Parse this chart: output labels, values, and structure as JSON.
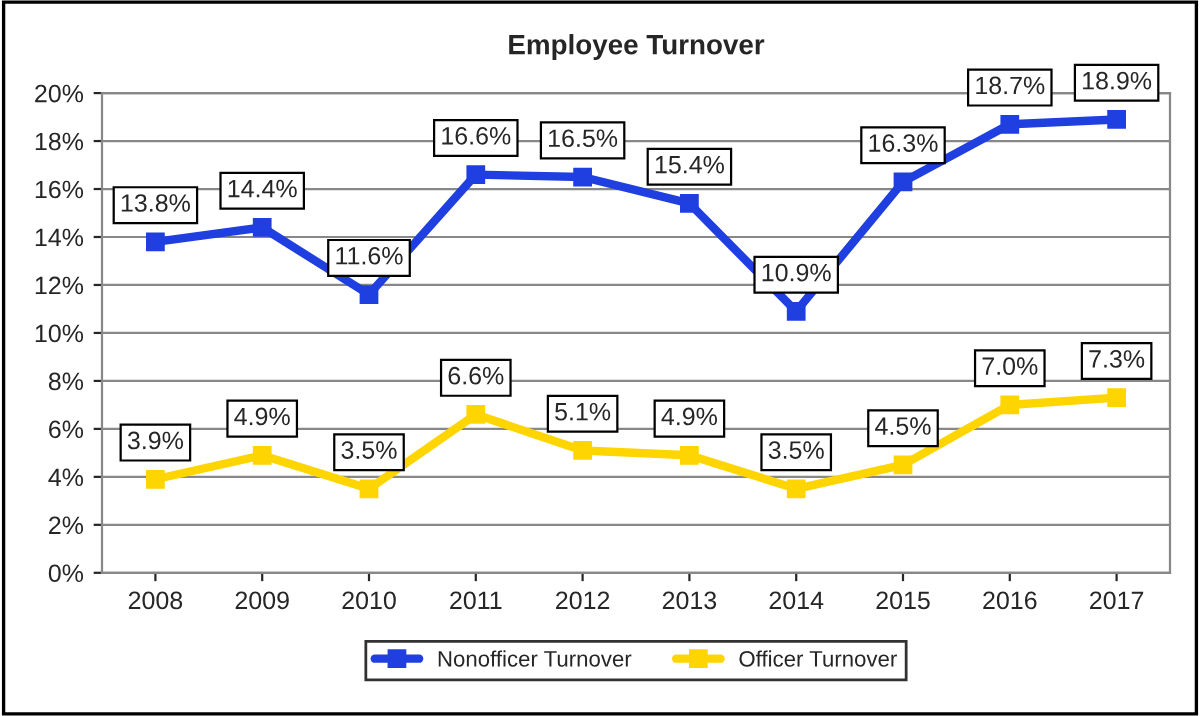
{
  "chart_data": {
    "type": "line",
    "title": "Employee Turnover",
    "categories": [
      "2008",
      "2009",
      "2010",
      "2011",
      "2012",
      "2013",
      "2014",
      "2015",
      "2016",
      "2017"
    ],
    "series": [
      {
        "name": "Nonofficer Turnover",
        "color": "#1f3fe0",
        "values": [
          13.8,
          14.4,
          11.6,
          16.6,
          16.5,
          15.4,
          10.9,
          16.3,
          18.7,
          18.9
        ],
        "value_labels": [
          "13.8%",
          "14.4%",
          "11.6%",
          "16.6%",
          "16.5%",
          "15.4%",
          "10.9%",
          "16.3%",
          "18.7%",
          "18.9%"
        ]
      },
      {
        "name": "Officer Turnover",
        "color": "#ffd500",
        "values": [
          3.9,
          4.9,
          3.5,
          6.6,
          5.1,
          4.9,
          3.5,
          4.5,
          7.0,
          7.3
        ],
        "value_labels": [
          "3.9%",
          "4.9%",
          "3.5%",
          "6.6%",
          "5.1%",
          "4.9%",
          "3.5%",
          "4.5%",
          "7.0%",
          "7.3%"
        ]
      }
    ],
    "ylim": [
      0,
      20
    ],
    "yticks": [
      {
        "value": 0,
        "label": "0%"
      },
      {
        "value": 2,
        "label": "2%"
      },
      {
        "value": 4,
        "label": "4%"
      },
      {
        "value": 6,
        "label": "6%"
      },
      {
        "value": 8,
        "label": "8%"
      },
      {
        "value": 10,
        "label": "10%"
      },
      {
        "value": 12,
        "label": "12%"
      },
      {
        "value": 14,
        "label": "14%"
      },
      {
        "value": 16,
        "label": "16%"
      },
      {
        "value": 18,
        "label": "18%"
      },
      {
        "value": 20,
        "label": "20%"
      }
    ],
    "grid": "y",
    "legend": "bottom",
    "marker": "square",
    "line_style": "solid"
  }
}
